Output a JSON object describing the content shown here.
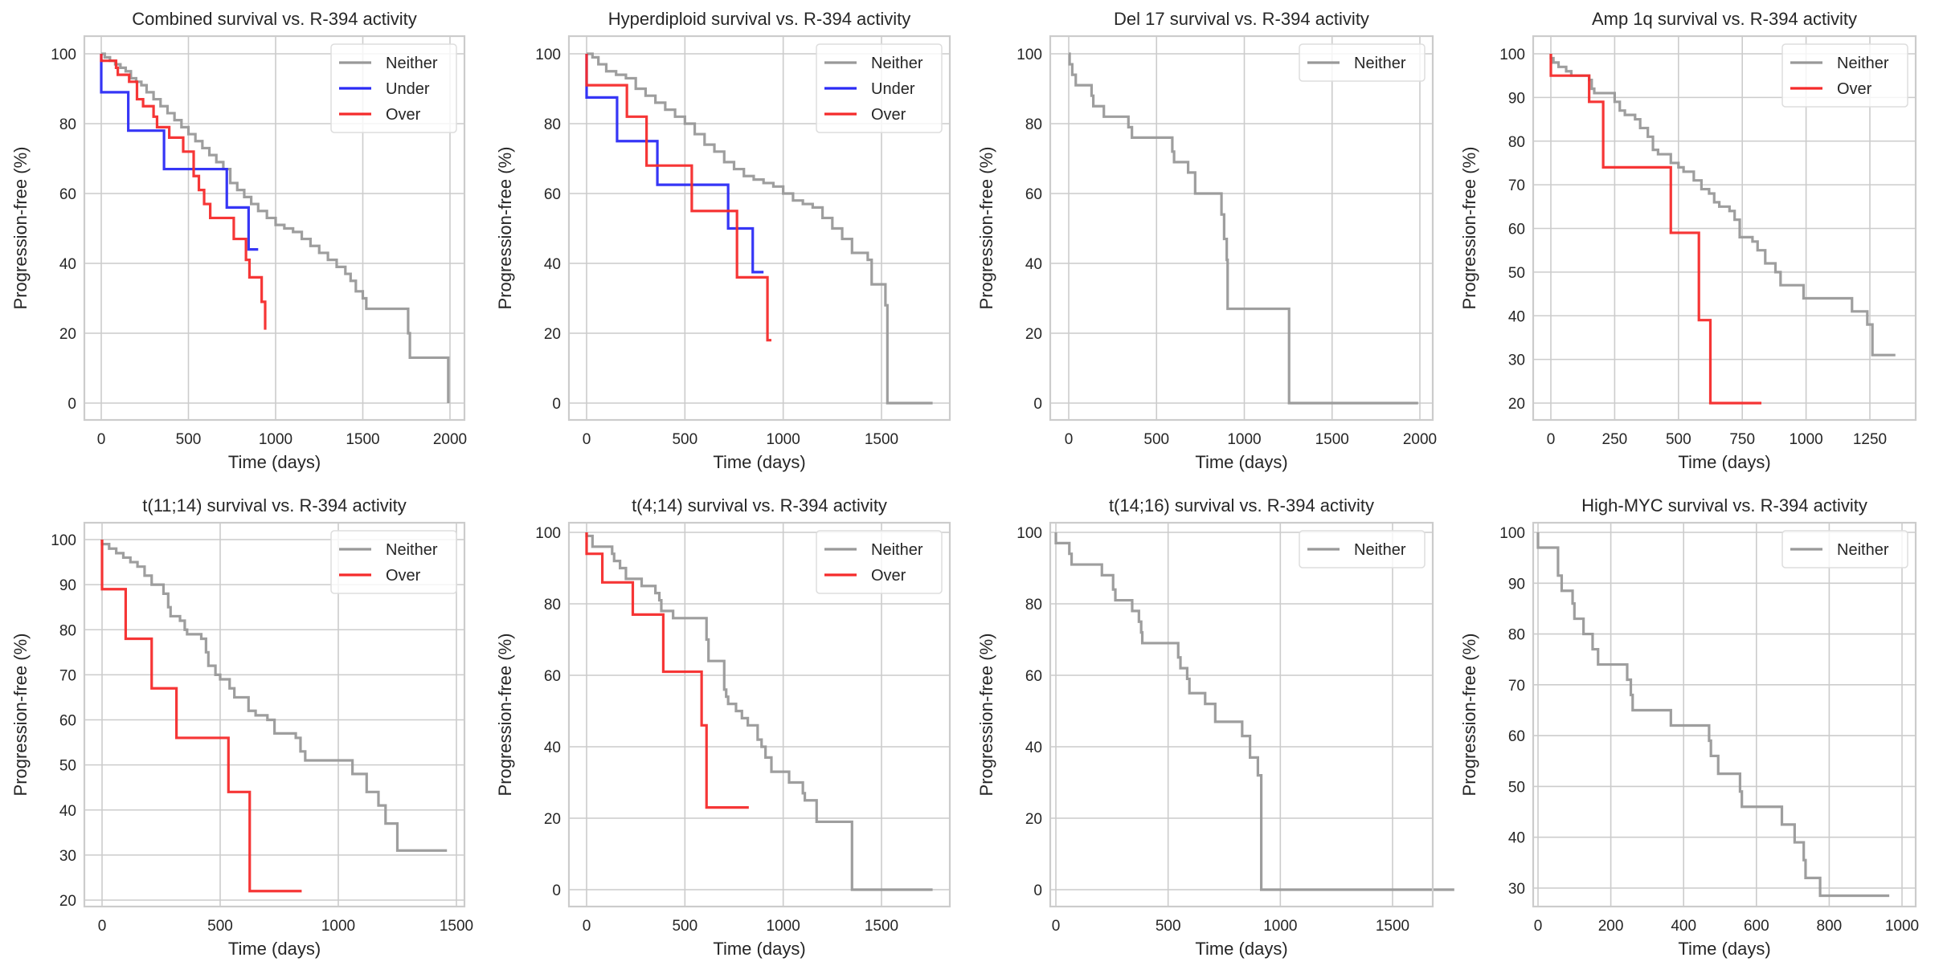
{
  "figure": {
    "background": "#ffffff",
    "grid_color": "#cccccc",
    "frame_color": "#cccccc",
    "series_colors": {
      "Neither": "#999999",
      "Under": "#2b2bf5",
      "Over": "#f52b2b"
    }
  },
  "chart_data": [
    {
      "type": "line",
      "step": true,
      "title": "Combined survival vs. R-394 activity",
      "xlabel": "Time (days)",
      "ylabel": "Progression-free (%)",
      "xlim": [
        -100,
        2100
      ],
      "ylim": [
        -5,
        105
      ],
      "xticks": [
        0,
        500,
        1000,
        1500,
        2000
      ],
      "yticks": [
        0,
        20,
        40,
        60,
        80,
        100
      ],
      "grid": true,
      "legend": "top-right",
      "series": [
        {
          "name": "Neither",
          "x": [
            0,
            20,
            50,
            80,
            110,
            140,
            170,
            200,
            230,
            260,
            300,
            340,
            380,
            420,
            460,
            500,
            540,
            580,
            620,
            660,
            700,
            740,
            780,
            820,
            860,
            900,
            950,
            1000,
            1050,
            1100,
            1150,
            1200,
            1250,
            1300,
            1350,
            1400,
            1430,
            1460,
            1500,
            1520,
            1760,
            1770,
            1990
          ],
          "y": [
            100,
            99,
            98,
            97,
            96,
            95,
            93,
            92,
            91,
            89,
            87,
            85,
            83,
            81,
            79,
            77,
            75,
            73,
            71,
            69,
            67,
            63,
            61,
            59,
            57,
            55,
            53,
            51,
            50,
            49,
            47,
            45,
            43,
            41,
            39,
            37,
            35,
            32,
            30,
            27,
            20,
            13,
            0
          ]
        },
        {
          "name": "Under",
          "x": [
            0,
            155,
            360,
            720,
            845,
            900
          ],
          "y": [
            89,
            78,
            67,
            56,
            44,
            44
          ]
        },
        {
          "name": "Over",
          "x": [
            0,
            85,
            95,
            160,
            205,
            240,
            300,
            320,
            390,
            470,
            530,
            560,
            590,
            625,
            760,
            830,
            850,
            920,
            940
          ],
          "y": [
            98,
            96,
            94,
            92,
            87,
            85,
            82,
            79,
            76,
            72,
            65,
            61,
            57,
            53,
            47,
            41,
            36,
            29,
            21
          ]
        }
      ]
    },
    {
      "type": "line",
      "step": true,
      "title": "Hyperdiploid survival vs. R-394 activity",
      "xlabel": "Time (days)",
      "ylabel": "Progression-free (%)",
      "xlim": [
        -88,
        1848
      ],
      "ylim": [
        -5,
        105
      ],
      "xticks": [
        0,
        500,
        1000,
        1500
      ],
      "yticks": [
        0,
        20,
        40,
        60,
        80,
        100
      ],
      "grid": true,
      "legend": "top-right",
      "series": [
        {
          "name": "Neither",
          "x": [
            0,
            30,
            60,
            100,
            150,
            200,
            250,
            300,
            350,
            400,
            450,
            500,
            550,
            600,
            650,
            700,
            750,
            800,
            850,
            900,
            950,
            1000,
            1050,
            1100,
            1150,
            1200,
            1250,
            1300,
            1350,
            1400,
            1430,
            1450,
            1510,
            1520,
            1530,
            1760
          ],
          "y": [
            100,
            99,
            97,
            95,
            94,
            93,
            90,
            88,
            86,
            84,
            82,
            80,
            77,
            74,
            72,
            69,
            67,
            65,
            64,
            63,
            62,
            60,
            58,
            57,
            56,
            53,
            50,
            47,
            43,
            43,
            41,
            34,
            34,
            28,
            0,
            0
          ]
        },
        {
          "name": "Under",
          "x": [
            0,
            155,
            360,
            720,
            845,
            900
          ],
          "y": [
            87.5,
            75,
            62.5,
            50,
            37.5,
            37.5
          ]
        },
        {
          "name": "Over",
          "x": [
            0,
            205,
            305,
            535,
            765,
            920,
            940
          ],
          "y": [
            91,
            82,
            68,
            55,
            36,
            18,
            18
          ]
        }
      ]
    },
    {
      "type": "line",
      "step": true,
      "title": "Del 17 survival vs. R-394 activity",
      "xlabel": "Time (days)",
      "ylabel": "Progression-free (%)",
      "xlim": [
        -100,
        2100
      ],
      "ylim": [
        -5,
        105
      ],
      "xticks": [
        0,
        500,
        1000,
        1500,
        2000
      ],
      "yticks": [
        0,
        20,
        40,
        60,
        80,
        100
      ],
      "grid": true,
      "legend": "top-right",
      "series": [
        {
          "name": "Neither",
          "x": [
            0,
            5,
            20,
            40,
            130,
            140,
            200,
            340,
            360,
            590,
            600,
            680,
            720,
            870,
            885,
            900,
            905,
            910,
            1255,
            1990
          ],
          "y": [
            100,
            97,
            94,
            91,
            88,
            85,
            82,
            79,
            76,
            72,
            69,
            66,
            60,
            54,
            47,
            41,
            27,
            27,
            0,
            0
          ]
        }
      ]
    },
    {
      "type": "line",
      "step": true,
      "title": "Amp 1q survival vs. R-394 activity",
      "xlabel": "Time (days)",
      "ylabel": "Progression-free (%)",
      "xlim": [
        -68,
        1428
      ],
      "ylim": [
        16,
        104
      ],
      "xticks": [
        0,
        250,
        500,
        750,
        1000,
        1250
      ],
      "yticks": [
        20,
        30,
        40,
        50,
        60,
        70,
        80,
        90,
        100
      ],
      "grid": true,
      "legend": "top-right",
      "series": [
        {
          "name": "Neither",
          "x": [
            0,
            10,
            30,
            60,
            80,
            140,
            150,
            160,
            170,
            250,
            270,
            290,
            330,
            350,
            380,
            400,
            420,
            470,
            500,
            520,
            560,
            590,
            620,
            640,
            660,
            700,
            720,
            740,
            790,
            810,
            840,
            880,
            900,
            990,
            1180,
            1240,
            1260,
            1350
          ],
          "y": [
            99,
            98,
            97,
            96,
            95,
            95,
            94,
            92,
            91,
            89,
            87,
            86,
            85,
            83,
            81,
            78,
            77,
            75,
            74,
            73,
            71,
            69,
            68,
            66,
            65,
            64,
            62,
            58,
            57,
            55,
            52,
            50,
            47,
            44,
            41,
            38,
            31,
            31
          ]
        },
        {
          "name": "Over",
          "x": [
            0,
            150,
            205,
            470,
            580,
            625,
            825
          ],
          "y": [
            95,
            89,
            74,
            59,
            39,
            20,
            20
          ]
        }
      ]
    },
    {
      "type": "line",
      "step": true,
      "title": "t(11;14) survival vs. R-394 activity",
      "xlabel": "Time (days)",
      "ylabel": "Progression-free (%)",
      "xlim": [
        -70,
        1540
      ],
      "ylim": [
        18.5,
        104
      ],
      "xticks": [
        0,
        500,
        1000,
        1500
      ],
      "yticks": [
        20,
        30,
        40,
        50,
        60,
        70,
        80,
        90,
        100
      ],
      "grid": true,
      "legend": "top-right",
      "series": [
        {
          "name": "Neither",
          "x": [
            0,
            30,
            60,
            90,
            120,
            150,
            180,
            210,
            260,
            280,
            290,
            330,
            350,
            360,
            420,
            440,
            450,
            480,
            500,
            540,
            560,
            620,
            650,
            700,
            730,
            820,
            840,
            860,
            1060,
            1120,
            1170,
            1200,
            1250,
            1460
          ],
          "y": [
            99,
            98,
            97,
            96,
            95,
            94,
            92,
            90,
            88,
            85,
            83,
            82,
            80,
            79,
            78,
            75,
            72,
            70,
            69,
            67,
            65,
            62,
            61,
            60,
            57,
            56,
            53,
            51,
            48,
            44,
            41,
            37,
            31,
            31
          ]
        },
        {
          "name": "Over",
          "x": [
            0,
            100,
            210,
            315,
            535,
            625,
            845
          ],
          "y": [
            89,
            78,
            67,
            56,
            44,
            22,
            22
          ]
        }
      ]
    },
    {
      "type": "line",
      "step": true,
      "title": "t(4;14) survival vs. R-394 activity",
      "xlabel": "Time (days)",
      "ylabel": "Progression-free (%)",
      "xlim": [
        -88,
        1848
      ],
      "ylim": [
        -5,
        105
      ],
      "xticks": [
        0,
        500,
        1000,
        1500
      ],
      "yticks": [
        0,
        20,
        40,
        60,
        80,
        100
      ],
      "grid": true,
      "legend": "top-right",
      "series": [
        {
          "name": "Neither",
          "x": [
            0,
            30,
            130,
            140,
            170,
            200,
            230,
            280,
            350,
            370,
            380,
            390,
            440,
            600,
            610,
            620,
            700,
            710,
            720,
            760,
            790,
            820,
            870,
            890,
            910,
            940,
            1030,
            1100,
            1110,
            1170,
            1350,
            1760
          ],
          "y": [
            99,
            96,
            94,
            92,
            90,
            87,
            87,
            85,
            83,
            81,
            78,
            78,
            76,
            76,
            70,
            64,
            56,
            54,
            52,
            50,
            48,
            46,
            42,
            40,
            37,
            33,
            30,
            27,
            25,
            19,
            0,
            0
          ]
        },
        {
          "name": "Over",
          "x": [
            0,
            80,
            235,
            390,
            585,
            610,
            825
          ],
          "y": [
            94,
            86,
            77,
            61,
            46,
            23,
            23
          ]
        }
      ]
    },
    {
      "type": "line",
      "step": true,
      "title": "t(14;16) survival vs. R-394 activity",
      "xlabel": "Time (days)",
      "ylabel": "Progression-free (%)",
      "xlim": [
        -88,
        1848
      ],
      "ylim": [
        -5,
        105
      ],
      "xticks": [
        0,
        500,
        1000,
        1500
      ],
      "yticks": [
        0,
        20,
        40,
        60,
        80,
        100
      ],
      "grid": true,
      "legend": "top-right",
      "series": [
        {
          "name": "Neither",
          "x": [
            0,
            60,
            70,
            205,
            255,
            265,
            340,
            370,
            380,
            385,
            545,
            555,
            585,
            595,
            665,
            710,
            830,
            865,
            900,
            915,
            1775
          ],
          "y": [
            97,
            94,
            91,
            88,
            84,
            81,
            78,
            75,
            72,
            69,
            65,
            62,
            59,
            55,
            52,
            47,
            43,
            37,
            32,
            0,
            0
          ]
        }
      ]
    },
    {
      "type": "line",
      "step": true,
      "title": "High-MYC survival vs. R-394 activity",
      "xlabel": "Time (days)",
      "ylabel": "Progression-free (%)",
      "xlim": [
        -48,
        1010
      ],
      "ylim": [
        25.5,
        104
      ],
      "xticks": [
        0,
        200,
        400,
        600,
        800,
        1000
      ],
      "yticks": [
        30,
        40,
        50,
        60,
        70,
        80,
        90,
        100
      ],
      "grid": true,
      "legend": "top-right",
      "series": [
        {
          "name": "Neither",
          "x": [
            0,
            55,
            65,
            95,
            100,
            125,
            150,
            165,
            245,
            255,
            260,
            365,
            470,
            475,
            495,
            555,
            560,
            670,
            705,
            730,
            735,
            775,
            965
          ],
          "y": [
            97,
            91.5,
            88.5,
            86,
            83,
            80,
            77,
            74,
            71,
            68,
            65,
            62,
            59,
            56,
            52.5,
            49,
            46,
            42.5,
            39,
            35.5,
            32,
            28.5,
            28.5
          ]
        }
      ]
    }
  ]
}
